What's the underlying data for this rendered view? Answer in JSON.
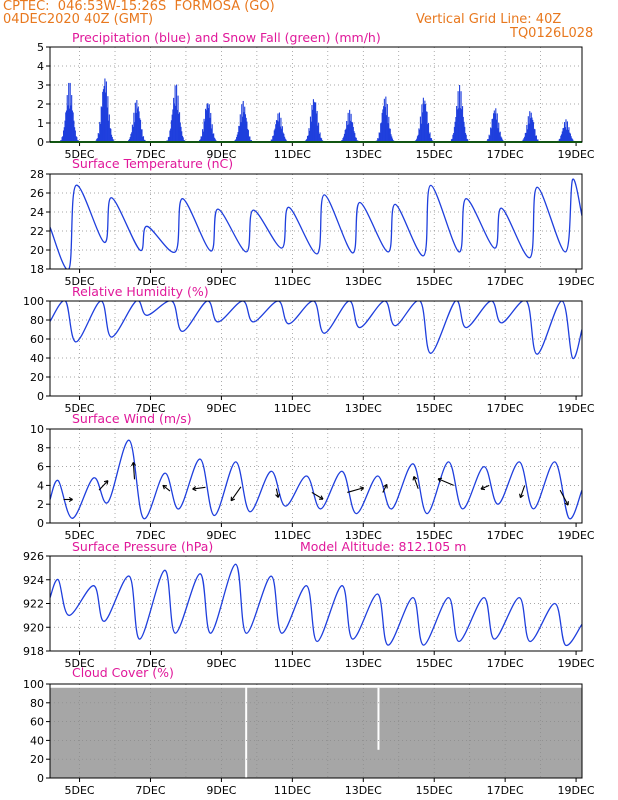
{
  "header": {
    "line1": "CPTEC:  046:53W-15:26S  FORMOSA (GO)",
    "line2": "04DEC2020 40Z (GMT)",
    "vgrid": "Vertical Grid Line: 40Z",
    "code": "TQ0126L028"
  },
  "colors": {
    "header": "#e8781e",
    "title": "#e0189a",
    "line": "#1f3fdd",
    "precip": "#1f3fdd",
    "snow": "#22aa22",
    "cloud": "#a6a6a6"
  },
  "x_axis": {
    "labels": [
      "5DEC",
      "7DEC",
      "9DEC",
      "11DEC",
      "13DEC",
      "15DEC",
      "17DEC",
      "19DEC"
    ],
    "start": "2020-12-04 04Z",
    "end": "2020-12-19 04Z"
  },
  "chart_data": [
    {
      "type": "bar",
      "title": "Precipitation (blue) and Snow Fall (green) (mm/h)",
      "ylim": [
        0,
        5
      ],
      "yticks": [
        "0",
        "1",
        "2",
        "3",
        "4",
        "5"
      ],
      "series": [
        {
          "name": "Precipitation",
          "peaks": [
            [
              4.7,
              3.2
            ],
            [
              5.7,
              3.6
            ],
            [
              6.6,
              2.3
            ],
            [
              7.7,
              3.1
            ],
            [
              8.6,
              2.3
            ],
            [
              9.6,
              2.2
            ],
            [
              10.6,
              1.6
            ],
            [
              11.6,
              2.5
            ],
            [
              12.6,
              1.7
            ],
            [
              13.6,
              2.5
            ],
            [
              14.7,
              2.5
            ],
            [
              15.7,
              3.0
            ],
            [
              16.7,
              1.9
            ],
            [
              17.7,
              1.7
            ],
            [
              18.7,
              1.2
            ]
          ]
        },
        {
          "name": "Snow Fall",
          "value": 0
        }
      ]
    },
    {
      "type": "line",
      "title": "Surface Temperature (nC)",
      "ylim": [
        18,
        28
      ],
      "yticks": [
        "18",
        "20",
        "22",
        "24",
        "26",
        "28"
      ],
      "min_day": [
        4.7,
        5.7,
        6.7,
        7.7,
        8.7,
        9.7,
        10.7,
        11.7,
        12.7,
        13.7,
        14.7,
        15.7,
        16.7,
        17.7,
        18.7
      ],
      "min_val": [
        18.0,
        20.8,
        20.0,
        19.8,
        19.9,
        19.8,
        20.2,
        19.6,
        19.7,
        19.8,
        19.4,
        19.8,
        20.2,
        19.2,
        19.8
      ],
      "max_day": [
        4.9,
        5.9,
        6.9,
        7.9,
        8.9,
        9.9,
        10.9,
        11.9,
        12.9,
        13.9,
        14.9,
        15.9,
        16.9,
        17.9,
        18.9
      ],
      "max_val": [
        26.8,
        25.5,
        22.5,
        25.4,
        24.3,
        24.2,
        24.5,
        25.8,
        25.0,
        24.8,
        26.8,
        25.4,
        24.4,
        26.6,
        27.4
      ]
    },
    {
      "type": "line",
      "title": "Relative Humidity (%)",
      "ylim": [
        0,
        100
      ],
      "yticks": [
        "0",
        "20",
        "40",
        "60",
        "80",
        "100"
      ],
      "min_day": [
        4.9,
        5.9,
        6.9,
        7.9,
        8.9,
        9.9,
        10.9,
        11.9,
        12.9,
        13.9,
        14.9,
        15.9,
        16.9,
        17.9,
        18.9
      ],
      "min_val": [
        57,
        62,
        85,
        68,
        78,
        78,
        76,
        66,
        72,
        74,
        45,
        72,
        77,
        44,
        40
      ],
      "max_day": [
        4.6,
        5.6,
        6.6,
        7.6,
        8.6,
        9.6,
        10.6,
        11.6,
        12.6,
        13.6,
        14.6,
        15.6,
        16.6,
        17.6,
        18.6
      ],
      "max_val": [
        100,
        100,
        100,
        100,
        100,
        100,
        100,
        100,
        100,
        100,
        100,
        100,
        100,
        100,
        100
      ]
    },
    {
      "type": "line",
      "title": "Surface Wind (m/s)",
      "ylim": [
        0,
        10
      ],
      "yticks": [
        "0",
        "2",
        "4",
        "6",
        "8",
        "10"
      ],
      "min_day": [
        4.8,
        5.8,
        6.8,
        7.8,
        8.8,
        9.8,
        10.8,
        11.8,
        12.8,
        13.8,
        14.8,
        15.8,
        16.8,
        17.8,
        18.8
      ],
      "min_val": [
        0.5,
        2.2,
        0.5,
        1.5,
        0.8,
        1.2,
        1.8,
        1.5,
        1.0,
        1.5,
        1.0,
        1.5,
        2.0,
        1.5,
        0.5
      ],
      "max_day": [
        4.4,
        5.4,
        6.4,
        7.4,
        8.4,
        9.4,
        10.4,
        11.4,
        12.4,
        13.4,
        14.4,
        15.4,
        16.4,
        17.4,
        18.4
      ],
      "max_val": [
        4.5,
        4.8,
        8.8,
        5.3,
        6.8,
        6.5,
        5.5,
        5.0,
        5.5,
        5.0,
        6.3,
        6.5,
        6.0,
        6.5,
        6.5
      ]
    },
    {
      "type": "line",
      "title": "Surface Pressure (hPa)",
      "annotation": "Model Altitude: 812.105 m",
      "ylim": [
        918,
        926
      ],
      "yticks": [
        "918",
        "920",
        "922",
        "924",
        "926"
      ],
      "min_day": [
        4.7,
        5.7,
        6.7,
        7.7,
        8.7,
        9.7,
        10.7,
        11.7,
        12.7,
        13.7,
        14.7,
        15.7,
        16.7,
        17.7,
        18.7
      ],
      "min_val": [
        921.0,
        920.5,
        919.0,
        919.5,
        919.5,
        919.5,
        919.5,
        918.8,
        919.0,
        918.5,
        918.5,
        918.8,
        919.0,
        918.8,
        918.5
      ],
      "max_day": [
        4.4,
        5.4,
        6.4,
        7.4,
        8.4,
        9.4,
        10.4,
        11.4,
        12.4,
        13.4,
        14.4,
        15.4,
        16.4,
        17.4,
        18.4
      ],
      "max_val": [
        924.0,
        923.5,
        924.3,
        924.8,
        924.5,
        925.3,
        924.3,
        923.5,
        923.5,
        922.8,
        922.5,
        922.5,
        922.5,
        922.5,
        922.0
      ]
    },
    {
      "type": "area",
      "title": "Cloud Cover (%)",
      "ylim": [
        0,
        100
      ],
      "yticks": [
        "0",
        "20",
        "40",
        "60",
        "80",
        "100"
      ],
      "value": 96
    }
  ]
}
